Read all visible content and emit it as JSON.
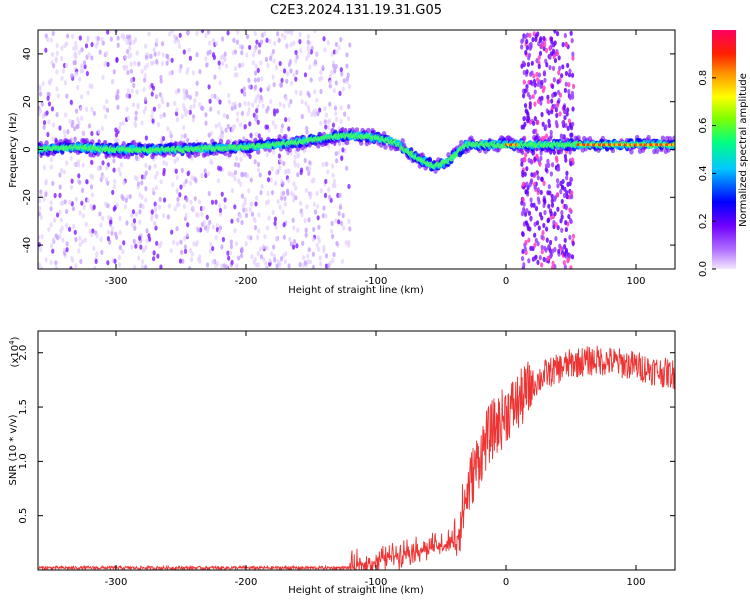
{
  "title": "C2E3.2024.131.19.31.G05",
  "chart_data": [
    {
      "type": "heatmap",
      "xlabel": "Height of straight line (km)",
      "ylabel": "Frequency (Hz)",
      "xlim": [
        -360,
        130
      ],
      "ylim": [
        -50,
        50
      ],
      "xticks": [
        -300,
        -200,
        -100,
        0,
        100
      ],
      "yticks": [
        -40,
        -20,
        0,
        20,
        40
      ],
      "colorbar": {
        "label": "Normalized spectral amplitude",
        "ticks": [
          0.0,
          0.2,
          0.4,
          0.6,
          0.8
        ],
        "range": [
          0,
          1
        ],
        "colormap": [
          "#f4e6ff",
          "#b070ff",
          "#7000ff",
          "#0000ff",
          "#00c8ff",
          "#00ff80",
          "#c8ff00",
          "#ffd000",
          "#ff5000",
          "#ff0060"
        ]
      },
      "ridge": {
        "x": [
          -360,
          -330,
          -300,
          -250,
          -200,
          -160,
          -140,
          -120,
          -100,
          -85,
          -70,
          -55,
          -45,
          -30,
          -10,
          10,
          50,
          80,
          130
        ],
        "y": [
          0,
          1,
          0,
          0,
          1,
          3,
          5,
          6,
          5,
          3,
          -3,
          -7,
          -5,
          2,
          2,
          2,
          2,
          2,
          2
        ]
      },
      "noise_bands_km": [
        [
          -360,
          -120
        ],
        [
          12,
          52
        ]
      ]
    },
    {
      "type": "line",
      "xlabel": "Height of straight line (km)",
      "ylabel": "SNR (10 * v/v)",
      "yscale_label": "(x10",
      "yscale_exp": "4",
      "xlim": [
        -360,
        130
      ],
      "ylim": [
        0,
        2.2
      ],
      "xticks": [
        -300,
        -200,
        -100,
        0,
        100
      ],
      "yticks": [
        0.5,
        1.0,
        1.5,
        2.0
      ],
      "series": [
        {
          "color": "#ee3333",
          "x": [
            -360,
            -300,
            -250,
            -200,
            -150,
            -120,
            -105,
            -90,
            -75,
            -60,
            -50,
            -40,
            -35,
            -30,
            -25,
            -20,
            -15,
            -10,
            -5,
            0,
            10,
            20,
            30,
            40,
            50,
            60,
            70,
            80,
            90,
            100,
            110,
            120,
            130
          ],
          "y": [
            0.02,
            0.02,
            0.02,
            0.02,
            0.02,
            0.02,
            0.06,
            0.12,
            0.18,
            0.2,
            0.22,
            0.25,
            0.45,
            0.7,
            0.9,
            1.05,
            1.2,
            1.3,
            1.35,
            1.45,
            1.55,
            1.7,
            1.8,
            1.85,
            1.9,
            1.92,
            1.93,
            1.92,
            1.9,
            1.88,
            1.85,
            1.82,
            1.8
          ]
        }
      ]
    }
  ]
}
